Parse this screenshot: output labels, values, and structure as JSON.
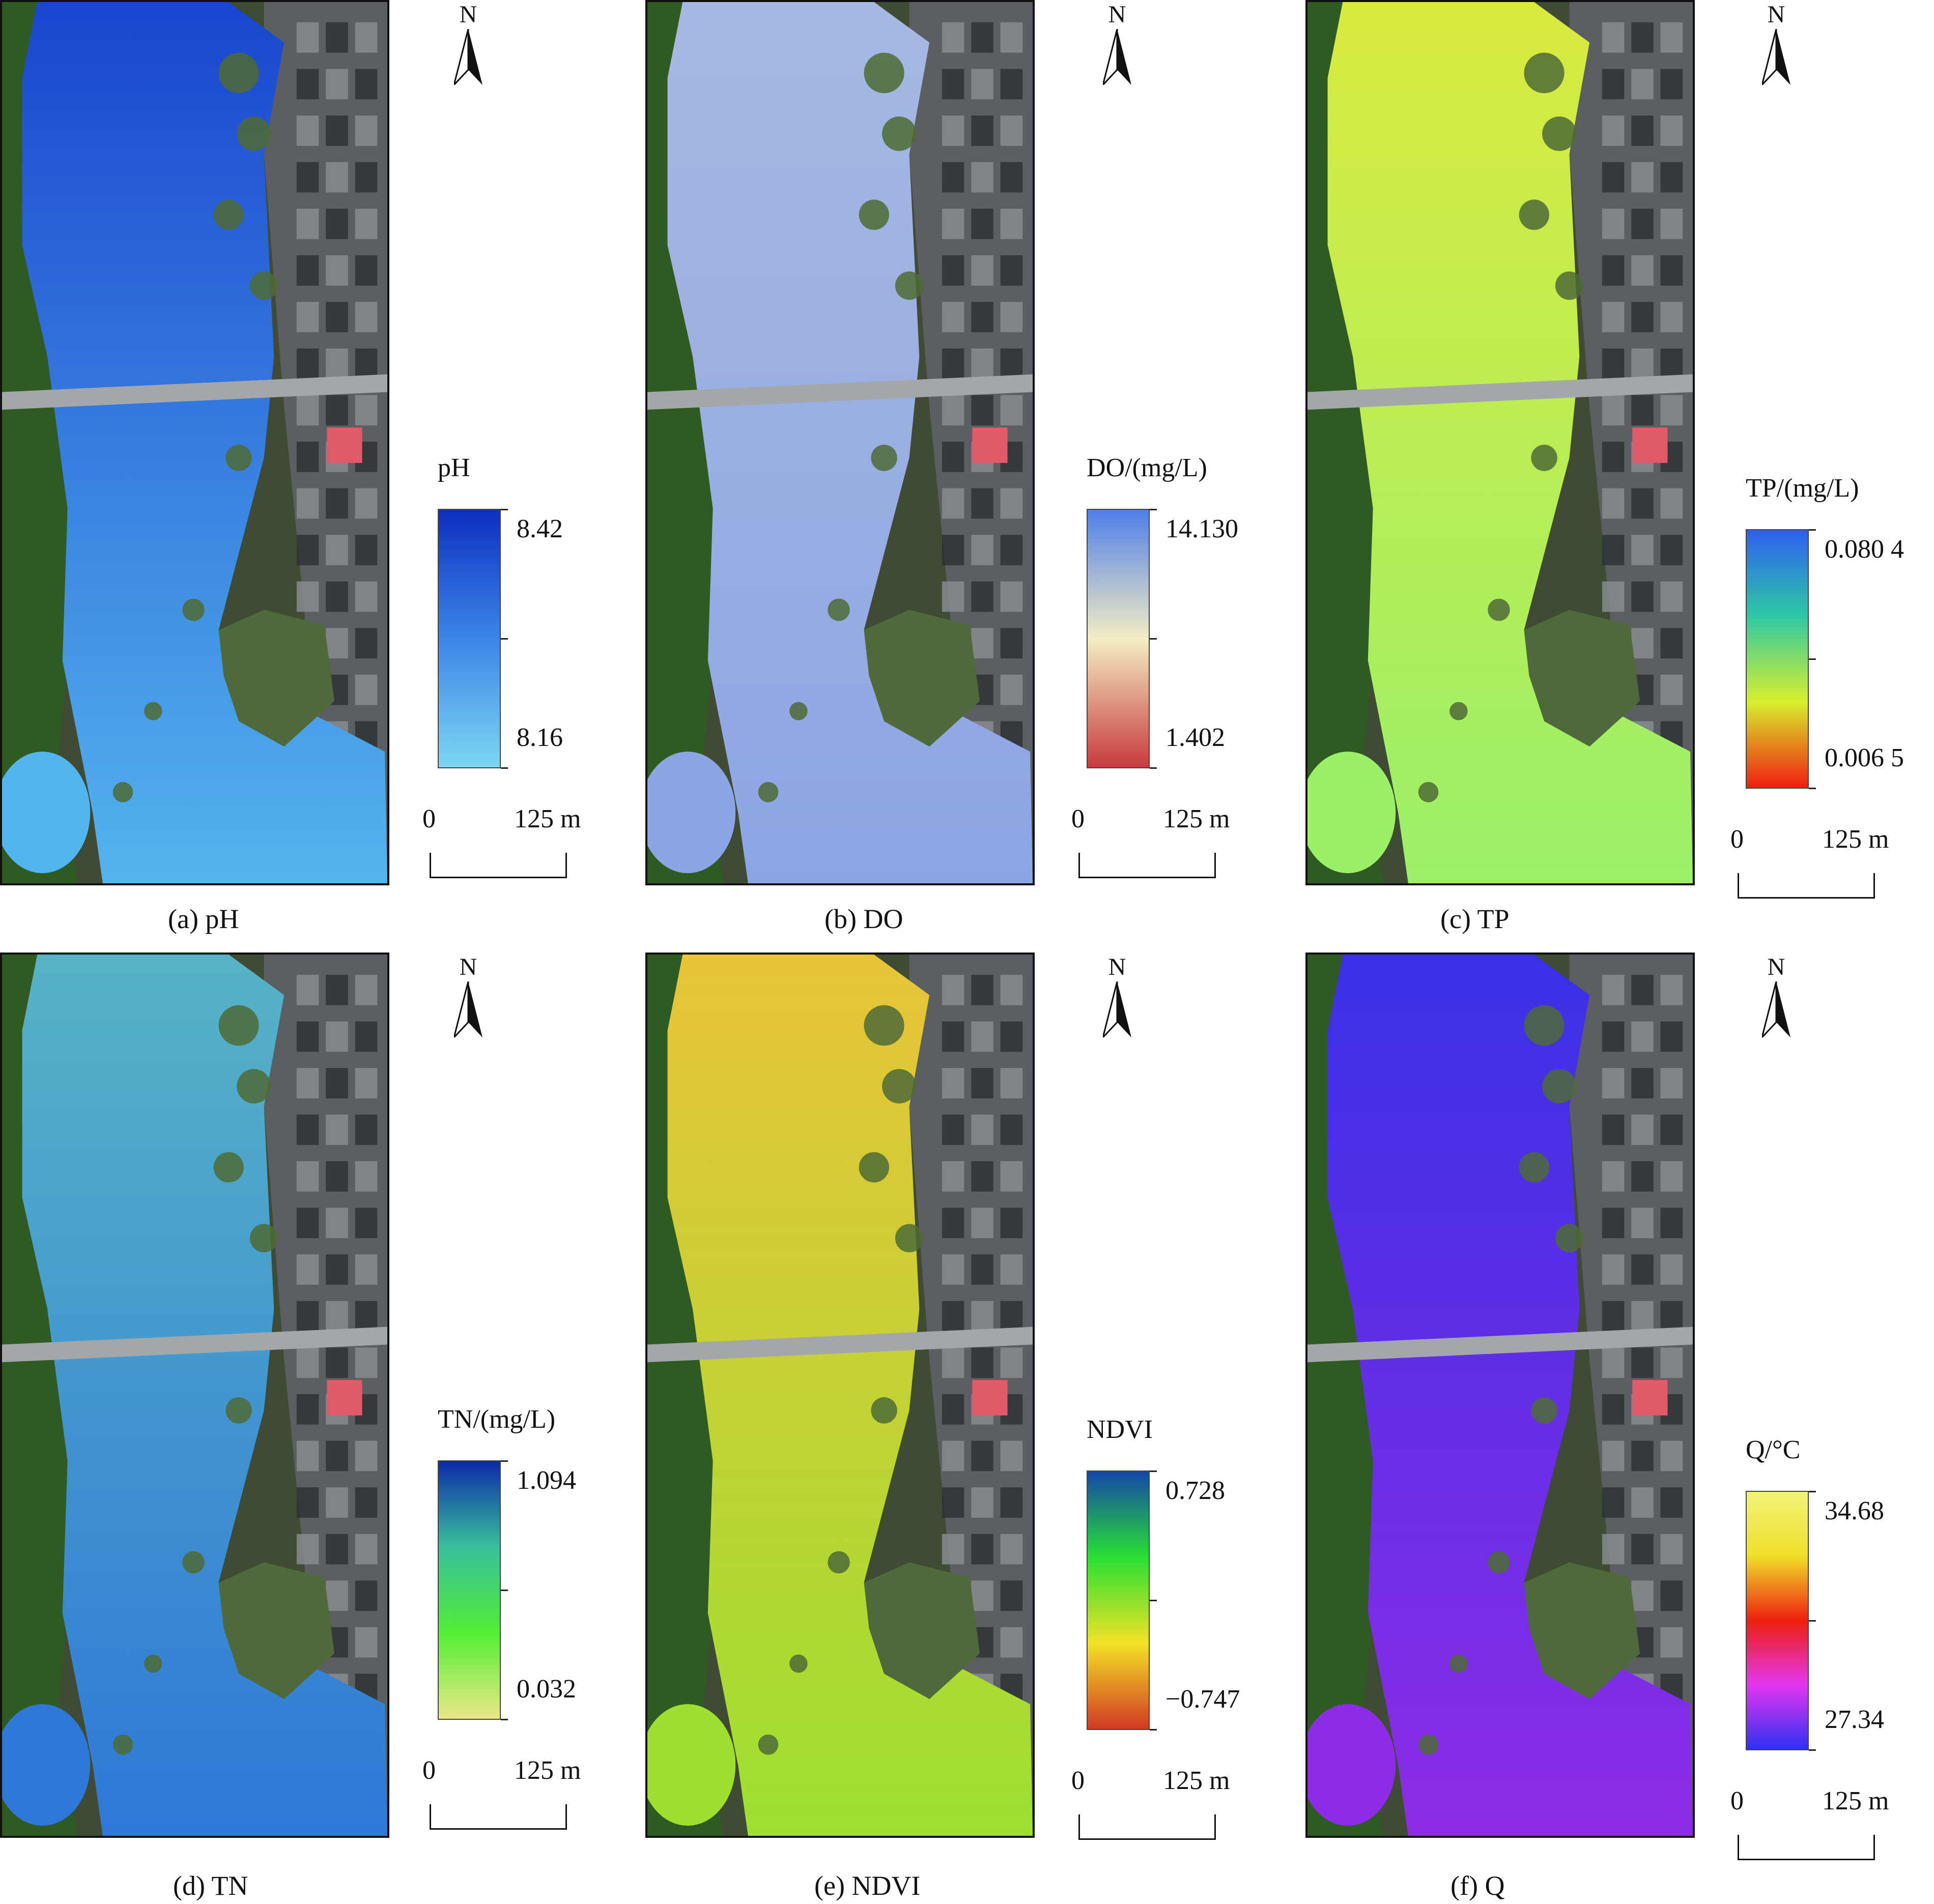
{
  "north_label": "N",
  "scale_bar": {
    "start": "0",
    "end": "125 m"
  },
  "panels": [
    {
      "id": "a",
      "caption": "(a) pH",
      "legend_title": "pH",
      "max": "8.42",
      "min": "8.16",
      "colors": [
        "#0d2fc0",
        "#3c86e8",
        "#7dd6f2"
      ],
      "water_top": "#1a45cf",
      "water_bottom": "#54b4ee"
    },
    {
      "id": "b",
      "caption": "(b) DO",
      "legend_title": "DO/(mg/L)",
      "max": "14.130",
      "min": "1.402",
      "colors": [
        "#4f7fe8",
        "#f3edc3",
        "#c83b3f"
      ],
      "water_top": "#a6b9e2",
      "water_bottom": "#8da5e3"
    },
    {
      "id": "c",
      "caption": "(c) TP",
      "legend_title": "TP/(mg/L)",
      "max": "0.080 4",
      "min": "0.006 5",
      "colors": [
        "#2f5ff0",
        "#2ec8a4",
        "#d8ef2c",
        "#f01e10"
      ],
      "water_top": "#d9ea3f",
      "water_bottom": "#9bf06a"
    },
    {
      "id": "d",
      "caption": "(d) TN",
      "legend_title": "TN/(mg/L)",
      "max": "1.094",
      "min": "0.032",
      "colors": [
        "#0c2aa6",
        "#39c09c",
        "#52ee34",
        "#ece887"
      ],
      "water_top": "#56b4c6",
      "water_bottom": "#2f78d8"
    },
    {
      "id": "e",
      "caption": "(e) NDVI",
      "legend_title": "NDVI",
      "max": "0.728",
      "min": "−0.747",
      "colors": [
        "#1446a8",
        "#29e033",
        "#f2e226",
        "#d23a24"
      ],
      "water_top": "#e8c436",
      "water_bottom": "#9ee030"
    },
    {
      "id": "f",
      "caption": "(f) Q",
      "legend_title": "Q/°C",
      "max": "34.68",
      "min": "27.34",
      "colors": [
        "#f1f27a",
        "#f0df28",
        "#ee1f10",
        "#e236f0",
        "#3030f0"
      ],
      "water_top": "#3a30e6",
      "water_bottom": "#8d2ce6"
    }
  ]
}
